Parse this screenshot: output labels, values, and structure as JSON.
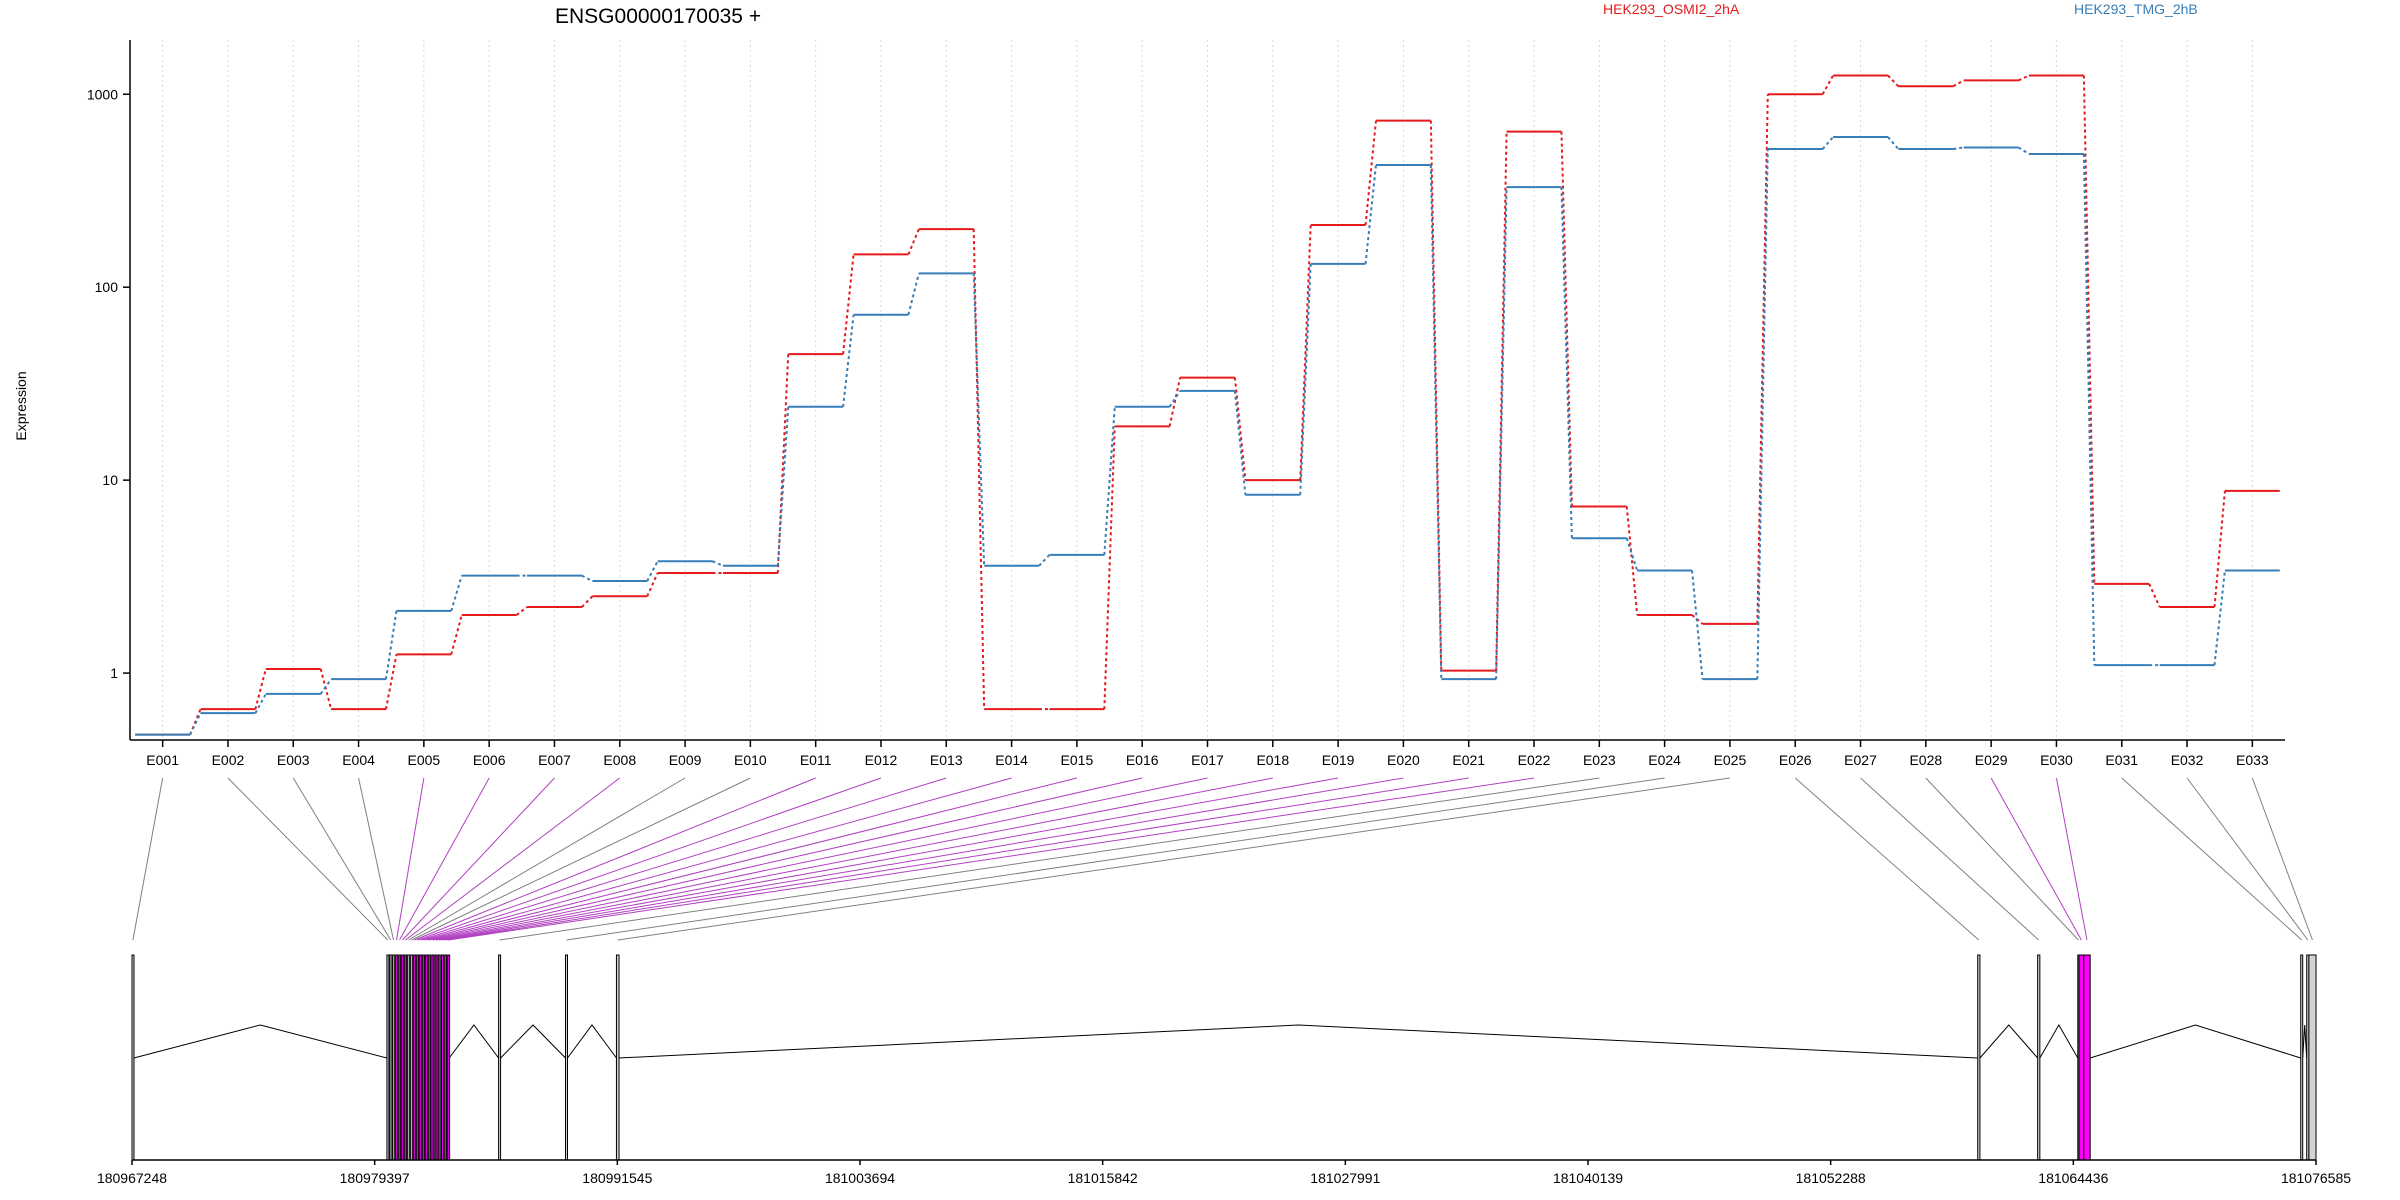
{
  "chart_data": {
    "type": "line",
    "title": "ENSG00000170035 +",
    "ylabel": "Expression",
    "xlabel": "",
    "y_scale": "log",
    "ylim": [
      0.45,
      1800
    ],
    "y_ticks": [
      1,
      10,
      100,
      1000
    ],
    "y_tick_labels": [
      "1",
      "10",
      "100",
      "1000"
    ],
    "grid": true,
    "legend_placement": "top-right",
    "categories": [
      "E001",
      "E002",
      "E003",
      "E004",
      "E005",
      "E006",
      "E007",
      "E008",
      "E009",
      "E010",
      "E011",
      "E012",
      "E013",
      "E014",
      "E015",
      "E016",
      "E017",
      "E018",
      "E019",
      "E020",
      "E021",
      "E022",
      "E023",
      "E024",
      "E025",
      "E026",
      "E027",
      "E028",
      "E029",
      "E030",
      "E031",
      "E032",
      "E033"
    ],
    "series": [
      {
        "name": "HEK293_OSMI2_2hA",
        "color": "#e41a1c",
        "values": [
          0.48,
          0.65,
          1.05,
          0.65,
          1.25,
          2.0,
          2.2,
          2.5,
          3.3,
          3.3,
          45,
          148,
          200,
          0.65,
          0.65,
          19,
          34,
          10,
          210,
          730,
          1.03,
          640,
          7.3,
          2.0,
          1.8,
          1000,
          1250,
          1100,
          1180,
          1250,
          2.9,
          2.2,
          8.8
        ]
      },
      {
        "name": "HEK293_TMG_2hB",
        "color": "#377eb8",
        "values": [
          0.48,
          0.62,
          0.78,
          0.93,
          2.1,
          3.2,
          3.2,
          3.0,
          3.8,
          3.6,
          24,
          72,
          118,
          3.6,
          4.1,
          24,
          29,
          8.4,
          132,
          430,
          0.93,
          330,
          5.0,
          3.4,
          0.93,
          520,
          600,
          520,
          530,
          490,
          1.1,
          1.1,
          3.4
        ]
      }
    ],
    "genomic_axis": {
      "ticks": [
        180967248,
        180979397,
        180991545,
        181003694,
        181015842,
        181027991,
        181040139,
        181052288,
        181064436,
        181076585
      ],
      "range": [
        180967248,
        181076585
      ],
      "exons": [
        {
          "id": "E001",
          "start": 180967248,
          "end": 180967340,
          "highlight": false
        },
        {
          "id": "E002",
          "start": 180980010,
          "end": 180980090,
          "highlight": false
        },
        {
          "id": "E003",
          "start": 180980160,
          "end": 180980240,
          "highlight": false
        },
        {
          "id": "E004",
          "start": 180980300,
          "end": 180980380,
          "highlight": false
        },
        {
          "id": "E005",
          "start": 180980450,
          "end": 180980530,
          "highlight": true
        },
        {
          "id": "E006",
          "start": 180980600,
          "end": 180980680,
          "highlight": true
        },
        {
          "id": "E007",
          "start": 180980750,
          "end": 180980830,
          "highlight": true
        },
        {
          "id": "E008",
          "start": 180980900,
          "end": 180980980,
          "highlight": true
        },
        {
          "id": "E009",
          "start": 180981050,
          "end": 180981130,
          "highlight": false
        },
        {
          "id": "E010",
          "start": 180981200,
          "end": 180981280,
          "highlight": false
        },
        {
          "id": "E011",
          "start": 180981350,
          "end": 180981430,
          "highlight": true
        },
        {
          "id": "E012",
          "start": 180981500,
          "end": 180981580,
          "highlight": true
        },
        {
          "id": "E013",
          "start": 180981650,
          "end": 180981730,
          "highlight": true
        },
        {
          "id": "E014",
          "start": 180981800,
          "end": 180981880,
          "highlight": true
        },
        {
          "id": "E015",
          "start": 180981950,
          "end": 180982030,
          "highlight": true
        },
        {
          "id": "E016",
          "start": 180982100,
          "end": 180982180,
          "highlight": true
        },
        {
          "id": "E017",
          "start": 180982260,
          "end": 180982340,
          "highlight": true
        },
        {
          "id": "E018",
          "start": 180982420,
          "end": 180982500,
          "highlight": true
        },
        {
          "id": "E019",
          "start": 180982580,
          "end": 180982660,
          "highlight": true
        },
        {
          "id": "E020",
          "start": 180982740,
          "end": 180982820,
          "highlight": true
        },
        {
          "id": "E021",
          "start": 180982900,
          "end": 180982980,
          "highlight": true
        },
        {
          "id": "E022",
          "start": 180983050,
          "end": 180983130,
          "highlight": true
        },
        {
          "id": "E023",
          "start": 180985600,
          "end": 180985700,
          "highlight": false
        },
        {
          "id": "E024",
          "start": 180988950,
          "end": 180989050,
          "highlight": false
        },
        {
          "id": "E025",
          "start": 180991500,
          "end": 180991630,
          "highlight": false
        },
        {
          "id": "E026",
          "start": 181059650,
          "end": 181059760,
          "highlight": false
        },
        {
          "id": "E027",
          "start": 181062650,
          "end": 181062760,
          "highlight": false
        },
        {
          "id": "E028",
          "start": 181064660,
          "end": 181064720,
          "highlight": false
        },
        {
          "id": "E029",
          "start": 181064720,
          "end": 181064960,
          "highlight": true
        },
        {
          "id": "E030",
          "start": 181064960,
          "end": 181065280,
          "highlight": true
        },
        {
          "id": "E031",
          "start": 181075820,
          "end": 181075920,
          "highlight": false
        },
        {
          "id": "E032",
          "start": 181076120,
          "end": 181076230,
          "highlight": false
        },
        {
          "id": "E033",
          "start": 181076230,
          "end": 181076585,
          "highlight": false
        }
      ]
    }
  }
}
